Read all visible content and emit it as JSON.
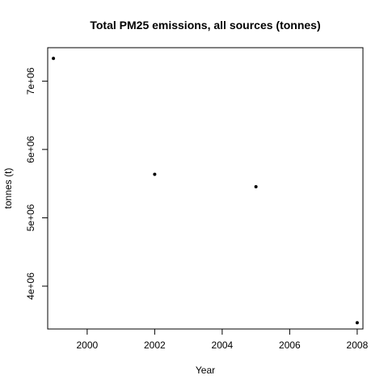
{
  "chart_data": {
    "type": "scatter",
    "title": "Total PM25 emissions, all sources (tonnes)",
    "xlabel": "Year",
    "ylabel": "tonnes (t)",
    "xlim": [
      1998.83,
      2008.17
    ],
    "ylim": [
      3373000,
      7489000
    ],
    "x_ticks": [
      2000,
      2002,
      2004,
      2006,
      2008
    ],
    "x_tick_labels": [
      "2000",
      "2002",
      "2004",
      "2006",
      "2008"
    ],
    "y_ticks": [
      4000000,
      5000000,
      6000000,
      7000000
    ],
    "y_tick_labels": [
      "4e+06",
      "5e+06",
      "6e+06",
      "7e+06"
    ],
    "grid": false,
    "legend": "none",
    "point_color": "#000000",
    "series": [
      {
        "x": [
          1999,
          2002,
          2005,
          2008
        ],
        "y": [
          7332000,
          5636000,
          5454000,
          3464000
        ]
      }
    ]
  }
}
